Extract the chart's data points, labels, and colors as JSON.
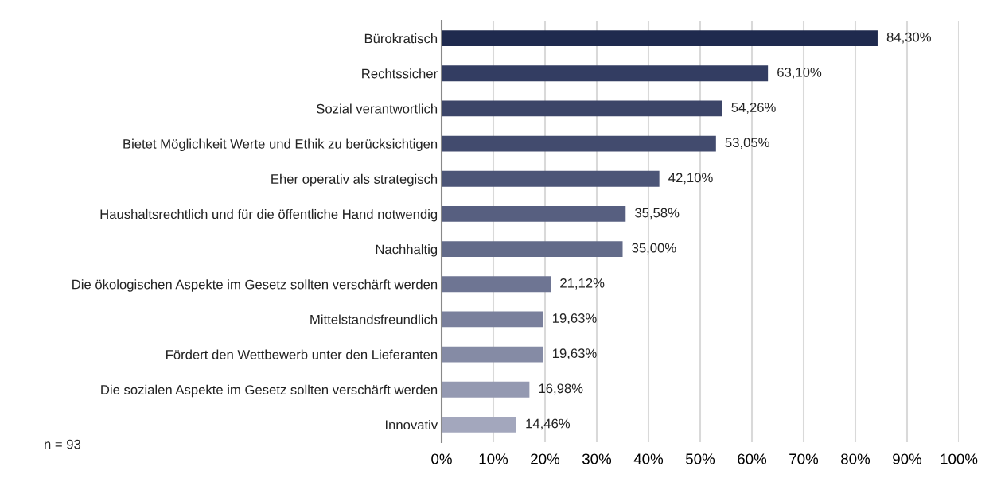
{
  "chart_data": {
    "type": "bar",
    "orientation": "horizontal",
    "categories": [
      "Bürokratisch",
      "Rechtssicher",
      "Sozial verantwortlich",
      "Bietet Möglichkeit Werte und Ethik zu berücksichtigen",
      "Eher operativ als strategisch",
      "Haushaltsrechtlich und für die öffentliche Hand notwendig",
      "Nachhaltig",
      "Die ökologischen Aspekte im Gesetz sollten verschärft werden",
      "Mittelstandsfreundlich",
      "Fördert den Wettbewerb unter den Lieferanten",
      "Die sozialen Aspekte im Gesetz sollten verschärft werden",
      "Innovativ"
    ],
    "values": [
      84.3,
      63.1,
      54.26,
      53.05,
      42.1,
      35.58,
      35.0,
      21.12,
      19.63,
      19.63,
      16.98,
      14.46
    ],
    "value_labels": [
      "84,30%",
      "63,10%",
      "54,26%",
      "53,05%",
      "42,10%",
      "35,58%",
      "35,00%",
      "21,12%",
      "19,63%",
      "19,63%",
      "16,98%",
      "14,46%"
    ],
    "colors": [
      "#1f2a4e",
      "#333d62",
      "#3c4568",
      "#424b6e",
      "#4c5577",
      "#575f80",
      "#636b89",
      "#6e7593",
      "#7a809c",
      "#858ba5",
      "#9499b1",
      "#a3a7bd"
    ],
    "xlim": [
      0,
      100
    ],
    "xticks": [
      {
        "value": 0,
        "label": "0%"
      },
      {
        "value": 10,
        "label": "10%"
      },
      {
        "value": 20,
        "label": "20%"
      },
      {
        "value": 30,
        "label": "30%"
      },
      {
        "value": 40,
        "label": "40%"
      },
      {
        "value": 50,
        "label": "50%"
      },
      {
        "value": 60,
        "label": "60%"
      },
      {
        "value": 70,
        "label": "70%"
      },
      {
        "value": 80,
        "label": "80%"
      },
      {
        "value": 90,
        "label": "90%"
      },
      {
        "value": 100,
        "label": "100%"
      }
    ],
    "grid": "x",
    "annotations": [
      "n = 93"
    ]
  }
}
